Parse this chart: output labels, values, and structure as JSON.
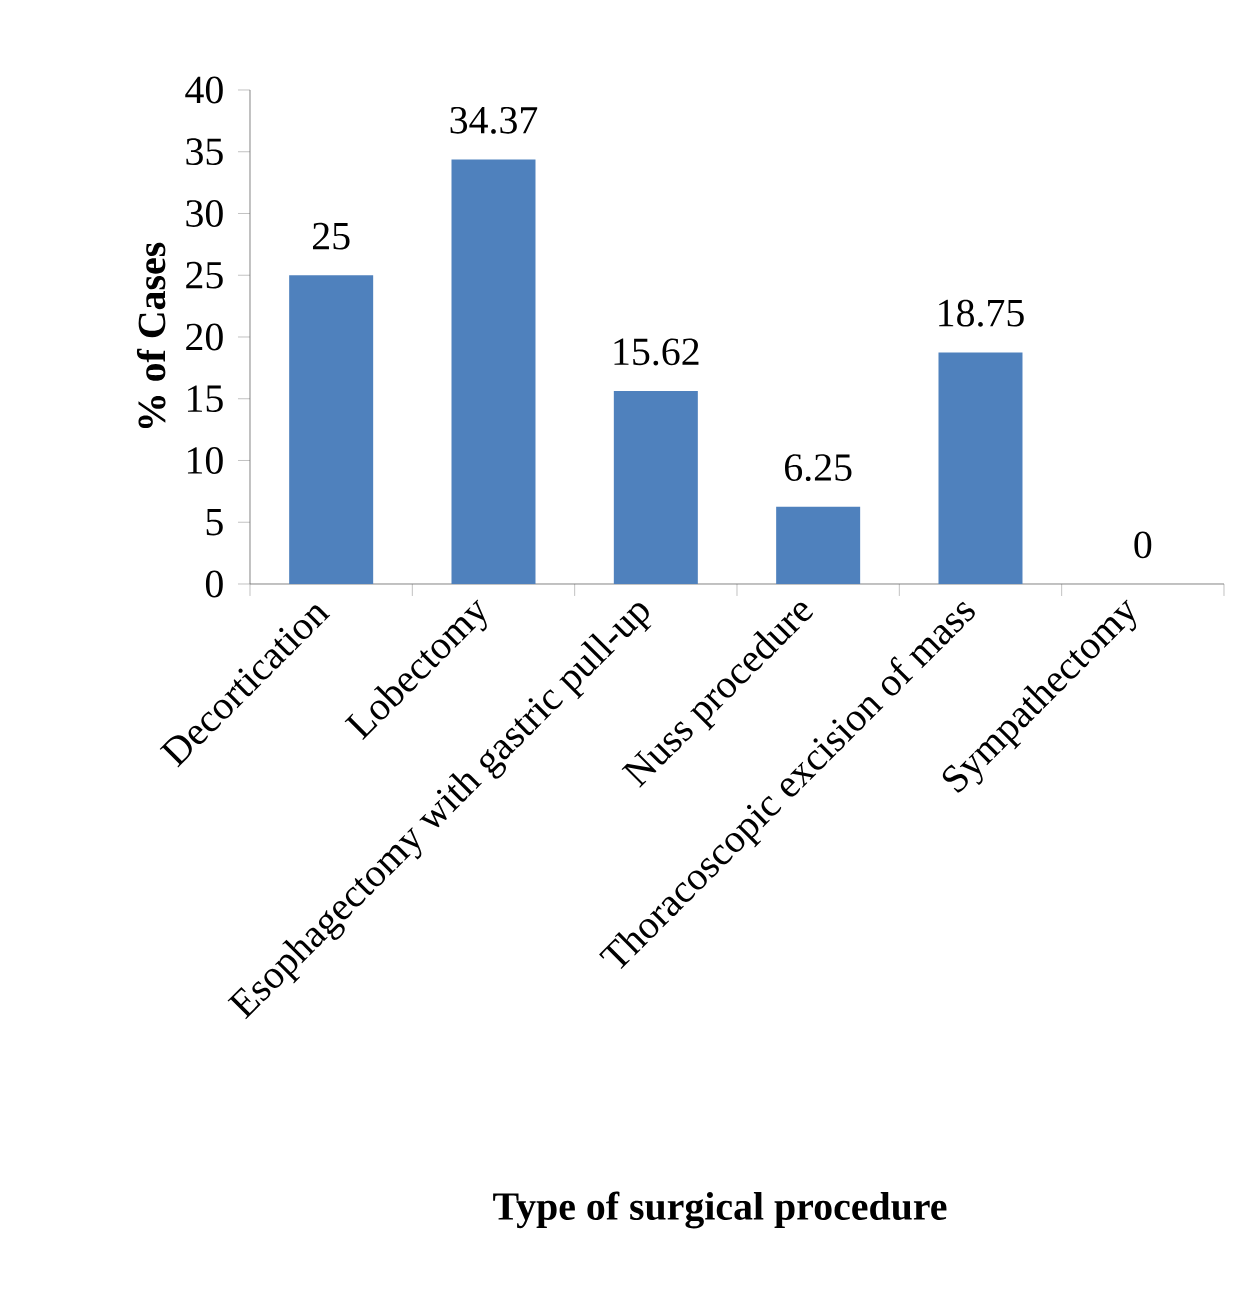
{
  "chart_data": {
    "type": "bar",
    "xlabel": "Type of surgical procedure",
    "ylabel": "% of Cases",
    "categories": [
      "Decortication",
      "Lobectomy",
      "Esophagectomy with gastric pull-up",
      "Nuss procedure",
      "Thoracoscopic excision of mass",
      "Sympathectomy"
    ],
    "values": [
      25,
      34.37,
      15.62,
      6.25,
      18.75,
      0
    ],
    "color": "#4f81bd",
    "ylim": [
      0,
      40
    ],
    "yticks": [
      0,
      5,
      10,
      15,
      20,
      25,
      30,
      35,
      40
    ],
    "data_labels": true,
    "grid": false
  }
}
